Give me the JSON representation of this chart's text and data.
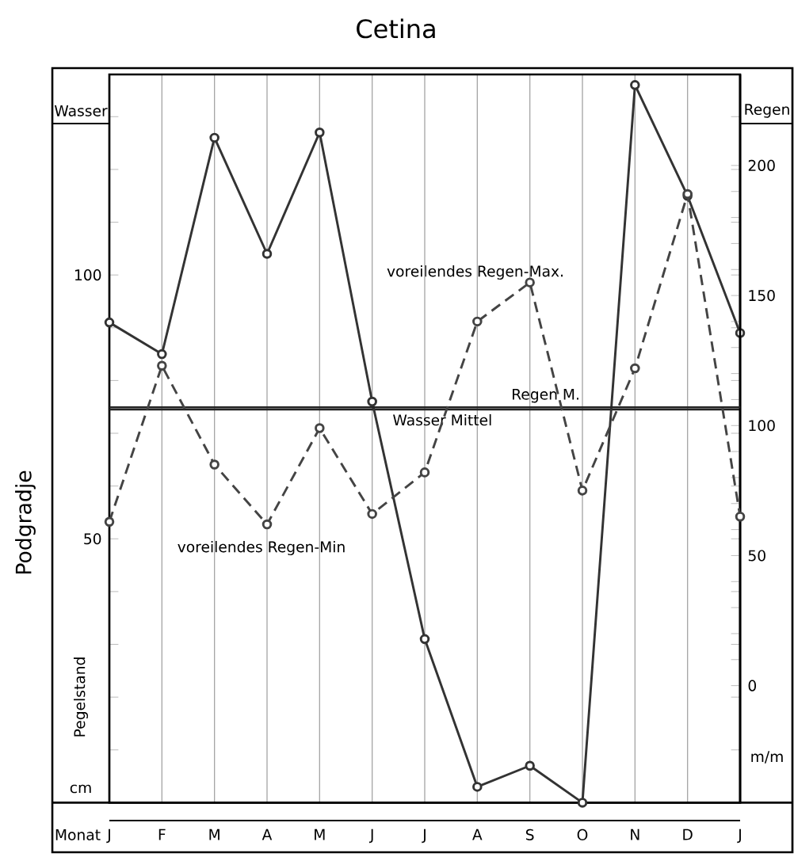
{
  "chart_data": {
    "type": "line",
    "title": "Cetina",
    "y2label": "Regen",
    "categories": [
      "J",
      "F",
      "M",
      "A",
      "M",
      "J",
      "J",
      "A",
      "S",
      "O",
      "N",
      "D",
      "J"
    ],
    "series": [
      {
        "axis": "y",
        "color": "#333333",
        "line_style": "solid",
        "values": [
          91,
          85,
          126,
          104,
          127,
          76,
          31,
          3,
          7,
          0,
          136,
          115,
          89
        ]
      },
      {
        "axis": "y2",
        "color": "#444444",
        "line_style": "dashed",
        "values": [
          63,
          123,
          85,
          62,
          99,
          66,
          82,
          140,
          155,
          75,
          122,
          189,
          65
        ]
      }
    ],
    "marker": "circle",
    "ylim": [
      0,
      138
    ],
    "yticks": [
      {
        "value": 10,
        "label": null
      },
      {
        "value": 20,
        "label": null
      },
      {
        "value": 30,
        "label": null
      },
      {
        "value": 40,
        "label": null
      },
      50,
      {
        "value": 60,
        "label": null
      },
      {
        "value": 70,
        "label": null
      },
      {
        "value": 80,
        "label": null
      },
      {
        "value": 90,
        "label": null
      },
      100,
      {
        "value": 110,
        "label": null
      },
      {
        "value": 120,
        "label": null
      },
      {
        "value": 130,
        "label": null
      }
    ],
    "y2lim": [
      -45,
      235
    ],
    "y2ticks": [
      0,
      {
        "value": 10,
        "label": null
      },
      {
        "value": 20,
        "label": null
      },
      {
        "value": 30,
        "label": null
      },
      {
        "value": 40,
        "label": null
      },
      50,
      {
        "value": 60,
        "label": null
      },
      {
        "value": 70,
        "label": null
      },
      {
        "value": 80,
        "label": null
      },
      {
        "value": 90,
        "label": null
      },
      100,
      {
        "value": 110,
        "label": null
      },
      {
        "value": 120,
        "label": null
      },
      {
        "value": 130,
        "label": null
      },
      {
        "value": 140,
        "label": null
      },
      150,
      {
        "value": 160,
        "label": null
      },
      {
        "value": 170,
        "label": null
      },
      {
        "value": 180,
        "label": null
      },
      {
        "value": 190,
        "label": null
      },
      200
    ],
    "grid": "x",
    "ref_lines": [
      {
        "axis": "y",
        "value": 74.5,
        "label": "Wasser Mittel",
        "color": "#222222"
      },
      {
        "axis": "y2",
        "value": 107,
        "label": "Regen M.",
        "color": "#222222"
      }
    ],
    "annotations": [
      "Wasser",
      "Pegelstand",
      "cm",
      "m/m",
      "voreilendes Regen-Max.",
      "voreilendes Regen-Min",
      "Podgradje",
      "Monat"
    ]
  }
}
